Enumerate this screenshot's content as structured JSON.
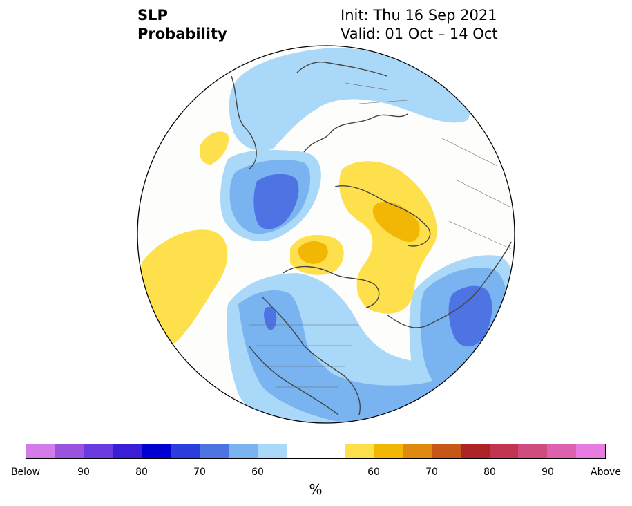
{
  "title": {
    "line1": "SLP",
    "line2": "Probability",
    "init": "Init: Thu 16 Sep 2021",
    "valid": "Valid: 01 Oct – 14 Oct"
  },
  "map": {
    "projection": "north-polar-stereographic",
    "background_color": "#fdfdfb",
    "regions": [
      {
        "label": "below-normal",
        "level": "60",
        "color": "#a9d8f8"
      },
      {
        "label": "below-normal",
        "level": "65",
        "color": "#79b3f0"
      },
      {
        "label": "below-normal",
        "level": "70",
        "color": "#4e74e4"
      },
      {
        "label": "above-normal",
        "level": "60",
        "color": "#fde04b"
      },
      {
        "label": "above-normal",
        "level": "65",
        "color": "#f2b705"
      }
    ]
  },
  "colorbar": {
    "colors": [
      "#d37be8",
      "#9b52de",
      "#6a3bdf",
      "#3a1ed8",
      "#0000d2",
      "#2a3fde",
      "#4e74e4",
      "#79b3f0",
      "#a9d8f8",
      "#ffffff",
      "#ffffff",
      "#fde04b",
      "#f2b705",
      "#de8a10",
      "#c65716",
      "#ae2323",
      "#c13553",
      "#ce4c7e",
      "#dd61ae",
      "#e77bdf"
    ],
    "tick_labels": [
      "Below",
      "90",
      "80",
      "70",
      "60",
      "",
      "60",
      "70",
      "80",
      "90",
      "Above"
    ],
    "unit": "%"
  }
}
